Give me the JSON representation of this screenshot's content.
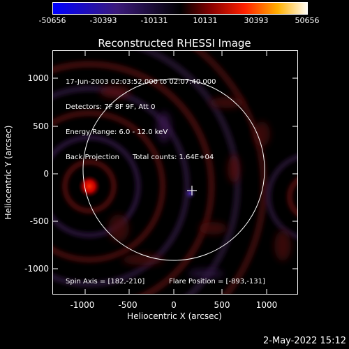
{
  "colorbar": {
    "labels": [
      "-50656",
      "-30393",
      "-10131",
      "10131",
      "30393",
      "50656"
    ]
  },
  "plot": {
    "title": "Reconstructed RHESSI Image",
    "info_lines": [
      "17-Jun-2003 02:03:52.000 to 02:07:40.000",
      "Detectors: 7F 8F 9F, Att 0",
      "Energy Range: 6.0 - 12.0 keV",
      "Back Projection",
      "Total counts: 1.64E+04"
    ],
    "spin_axis": "Spin Axis = [182,-210]",
    "flare_position": "Flare Position = [-893,-131]",
    "xlabel": "Heliocentric X (arcsec)",
    "ylabel": "Heliocentric Y (arcsec)",
    "xticks": [
      "-1000",
      "-500",
      "0",
      "500",
      "1000"
    ],
    "yticks": [
      "1000",
      "500",
      "0",
      "-500",
      "-1000"
    ]
  },
  "footer": {
    "date": "2-May-2022 15:12"
  },
  "colors": {
    "background": "#000000",
    "axis": "#ffffff",
    "limb_circle": "#ffffff",
    "colormap": [
      "#0000ff",
      "#3b1a7a",
      "#000000",
      "#8a0000",
      "#ff2000",
      "#ffb000",
      "#ffffff"
    ]
  },
  "chart_data": {
    "type": "heatmap",
    "title": "Reconstructed RHESSI Image",
    "xlabel": "Heliocentric X (arcsec)",
    "ylabel": "Heliocentric Y (arcsec)",
    "xlim": [
      -1280,
      1280
    ],
    "ylim": [
      -1280,
      1280
    ],
    "colorbar_range": [
      -50656,
      50656
    ],
    "solar_limb_radius": 950,
    "spin_axis": [
      182,
      -210
    ],
    "flare_position": [
      -893,
      -131
    ]
  }
}
